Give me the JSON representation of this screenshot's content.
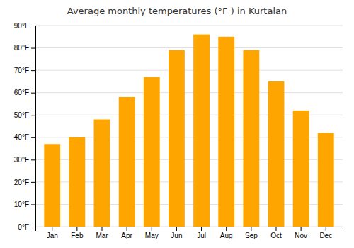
{
  "chart_data": {
    "type": "bar",
    "title": "Average monthly temperatures (°F ) in Kurtalan",
    "categories": [
      "Jan",
      "Feb",
      "Mar",
      "Apr",
      "May",
      "Jun",
      "Jul",
      "Aug",
      "Sep",
      "Oct",
      "Nov",
      "Dec"
    ],
    "values": [
      37,
      40,
      48,
      58,
      67,
      79,
      86,
      85,
      79,
      65,
      52,
      42
    ],
    "color": "#FFA500",
    "ylim": [
      0,
      90
    ],
    "yticks": [
      {
        "value": 0,
        "label": "0°F"
      },
      {
        "value": 10,
        "label": "10°F"
      },
      {
        "value": 20,
        "label": "20°F"
      },
      {
        "value": 30,
        "label": "30°F"
      },
      {
        "value": 40,
        "label": "40°F"
      },
      {
        "value": 50,
        "label": "50°F"
      },
      {
        "value": 60,
        "label": "60°F"
      },
      {
        "value": 70,
        "label": "70°F"
      },
      {
        "value": 80,
        "label": "80°F"
      },
      {
        "value": 90,
        "label": "90°F"
      }
    ],
    "grid": true
  }
}
